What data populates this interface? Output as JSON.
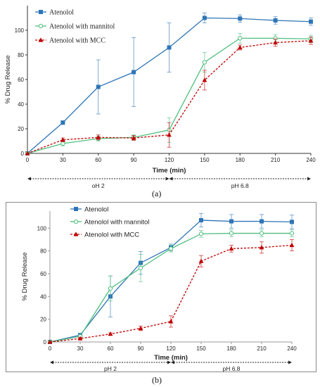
{
  "chart_data": [
    {
      "type": "line",
      "panel": "a",
      "caption": "(a)",
      "x": [
        0,
        30,
        60,
        90,
        120,
        150,
        180,
        210,
        240
      ],
      "xlabel": "Time (min)",
      "ylabel": "% Drug Release",
      "xlim": [
        0,
        240
      ],
      "ylim": [
        0,
        120
      ],
      "xticks": [
        0,
        30,
        60,
        90,
        120,
        150,
        180,
        210,
        240
      ],
      "yticks": [
        0,
        20,
        40,
        60,
        80,
        100
      ],
      "grid": false,
      "legend_position": "top-left",
      "series": [
        {
          "name": "Atenolol",
          "color": "#2e75b6",
          "marker": "square",
          "values": [
            0,
            25,
            54,
            66,
            86,
            110,
            109.5,
            108,
            107
          ],
          "errors": [
            0,
            1.5,
            22,
            28,
            20,
            4,
            3,
            3,
            3
          ]
        },
        {
          "name": "Atenolol with mannitol",
          "color": "#4fbf7f",
          "marker": "circle-open",
          "values": [
            0,
            8,
            12,
            13,
            19,
            74,
            93.5,
            93.5,
            93
          ],
          "errors": [
            0,
            2,
            2,
            2,
            10,
            8,
            4,
            3,
            3
          ]
        },
        {
          "name": "Atenolol with MCC",
          "color": "#c00000",
          "marker": "triangle",
          "values": [
            0,
            11,
            13,
            12.5,
            15,
            59.5,
            86,
            90,
            91.5
          ],
          "errors": [
            0,
            1.5,
            2,
            2,
            10,
            8,
            2,
            3,
            3
          ]
        }
      ],
      "phases": [
        {
          "label": "oH 2",
          "from": 0,
          "to": 120
        },
        {
          "label": "pH 6.8",
          "from": 120,
          "to": 240
        }
      ]
    },
    {
      "type": "line",
      "panel": "b",
      "caption": "(b)",
      "x": [
        0,
        30,
        60,
        90,
        120,
        150,
        180,
        210,
        240
      ],
      "xlabel": "Time (min)",
      "ylabel": "% Drug Release",
      "xlim": [
        0,
        240
      ],
      "ylim": [
        0,
        120
      ],
      "xticks": [
        0,
        30,
        60,
        90,
        120,
        150,
        180,
        210,
        240
      ],
      "yticks": [
        0,
        20,
        40,
        60,
        80,
        100
      ],
      "grid": false,
      "legend_position": "top-left",
      "series": [
        {
          "name": "Atenolol",
          "color": "#2e75b6",
          "marker": "square",
          "values": [
            0,
            6,
            40,
            69.5,
            83,
            107,
            106,
            106,
            105.5
          ],
          "errors": [
            0,
            1,
            18,
            10,
            3,
            6,
            6,
            6,
            6
          ]
        },
        {
          "name": "Atenolol with mannitol",
          "color": "#4fbf7f",
          "marker": "circle-open",
          "values": [
            0,
            5,
            47,
            65,
            82,
            95,
            95.5,
            95.5,
            95.5
          ],
          "errors": [
            0,
            1,
            11,
            12,
            3,
            3,
            3,
            3,
            3
          ]
        },
        {
          "name": "Atenolol with MCC",
          "color": "#c00000",
          "marker": "triangle",
          "values": [
            0,
            3,
            7,
            12,
            18,
            71,
            82,
            83,
            85
          ],
          "errors": [
            0,
            1,
            1,
            2,
            5,
            5,
            3,
            5,
            5
          ]
        }
      ],
      "phases": [
        {
          "label": "pH 2",
          "from": 0,
          "to": 120
        },
        {
          "label": "pH 6.8",
          "from": 120,
          "to": 240
        }
      ]
    }
  ]
}
